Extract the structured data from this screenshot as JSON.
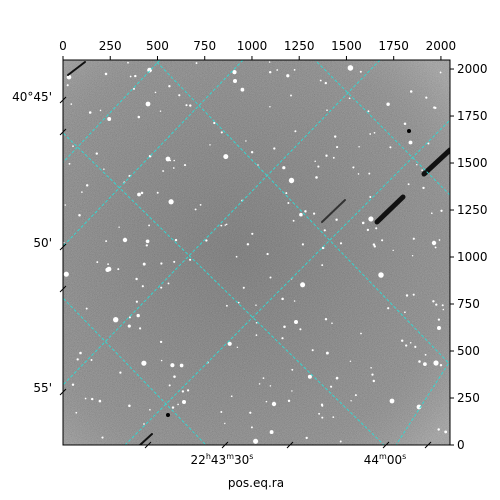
{
  "image": {
    "x_axis_label": "pos.eq.ra",
    "top_ticks": [
      "0",
      "250",
      "500",
      "750",
      "1000",
      "1250",
      "1500",
      "1750",
      "2000"
    ],
    "right_ticks": [
      "0",
      "250",
      "500",
      "750",
      "1000",
      "1250",
      "1500",
      "1750",
      "2000"
    ],
    "dec_ticks": [
      "40°45'",
      "50'",
      "55'"
    ],
    "ra_ticks": [
      {
        "hours": "22",
        "minutes": "43",
        "seconds": "30"
      },
      {
        "hours": "",
        "minutes": "44",
        "seconds": "00"
      }
    ],
    "ra_unit_symbols": {
      "h": "h",
      "m": "m",
      "s": "s"
    },
    "grid_color": "#35d6d0",
    "background_gray": "#6e6e6e"
  }
}
